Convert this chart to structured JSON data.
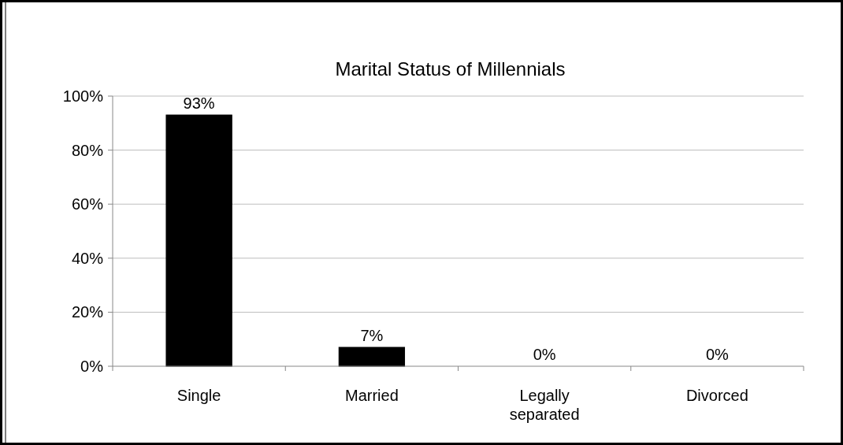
{
  "chart_data": {
    "type": "bar",
    "title": "Marital Status of Millennials",
    "categories": [
      "Single",
      "Married",
      "Legally separated",
      "Divorced"
    ],
    "values": [
      93,
      7,
      0,
      0
    ],
    "value_labels": [
      "93%",
      "7%",
      "0%",
      "0%"
    ],
    "color": "#000000",
    "ylim": [
      0,
      100
    ],
    "yticks": [
      {
        "value": 0,
        "label": "0%"
      },
      {
        "value": 20,
        "label": "20%"
      },
      {
        "value": 40,
        "label": "40%"
      },
      {
        "value": 60,
        "label": "60%"
      },
      {
        "value": 80,
        "label": "80%"
      },
      {
        "value": 100,
        "label": "100%"
      }
    ],
    "grid": "y"
  }
}
